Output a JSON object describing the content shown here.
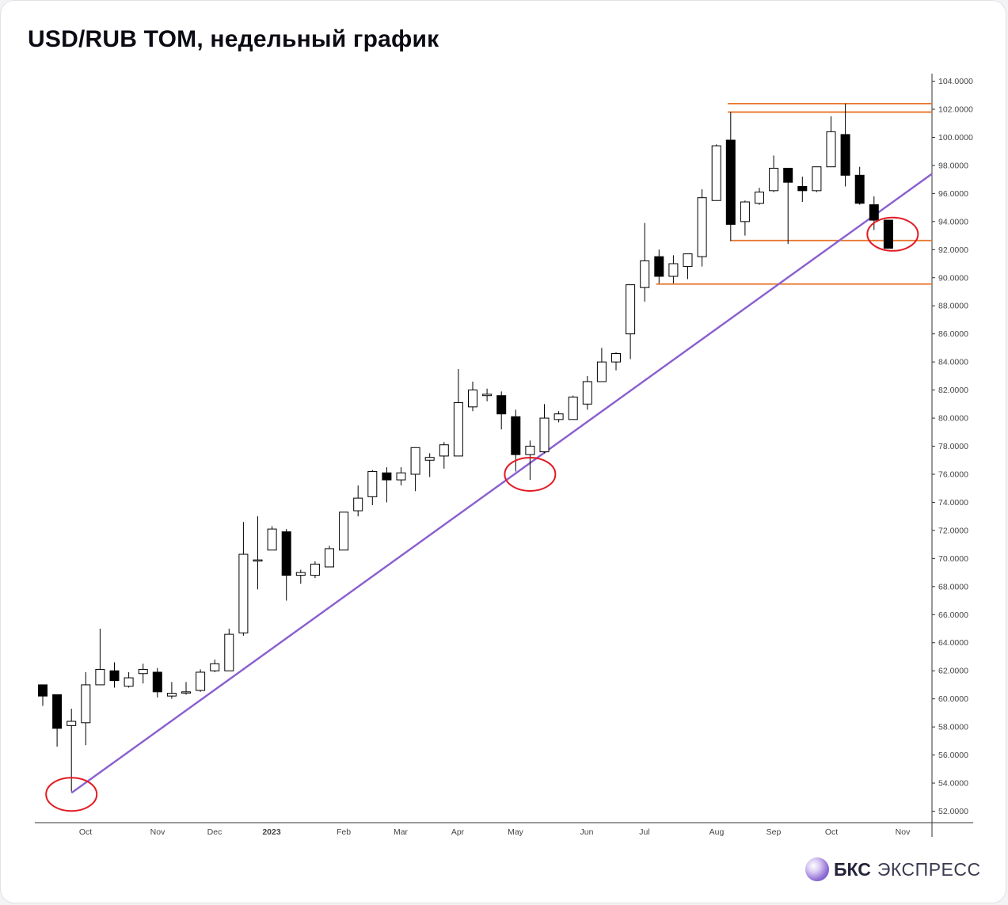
{
  "title": "USD/RUB TOM, недельный график",
  "logo": {
    "brand": "БКС",
    "name": "ЭКСПРЕСС",
    "icon": "bks-sphere-icon"
  },
  "colors": {
    "bull_fill": "#ffffff",
    "bear_fill": "#000000",
    "candle_stroke": "#000000",
    "trendline": "#8a5fd0",
    "levels": "#e8742a",
    "highlight": "#e21b23",
    "axis_text": "#444444"
  },
  "chart_data": {
    "type": "candlestick",
    "title": "USD/RUB TOM, недельный график",
    "ylim": [
      51.0,
      105.0
    ],
    "y_ticks": [
      "52.0000",
      "54.0000",
      "56.0000",
      "58.0000",
      "60.0000",
      "62.0000",
      "64.0000",
      "66.0000",
      "68.0000",
      "70.0000",
      "72.0000",
      "74.0000",
      "76.0000",
      "78.0000",
      "80.0000",
      "82.0000",
      "84.0000",
      "86.0000",
      "88.0000",
      "90.0000",
      "92.0000",
      "94.0000",
      "96.0000",
      "98.0000",
      "100.0000",
      "102.0000",
      "104.0000"
    ],
    "x_labels": [
      "Oct",
      "Nov",
      "Dec",
      "2023",
      "Feb",
      "Mar",
      "Apr",
      "May",
      "Jun",
      "Jul",
      "Aug",
      "Sep",
      "Oct",
      "Nov"
    ],
    "candles": [
      {
        "o": 61.0,
        "h": 61.0,
        "l": 59.5,
        "c": 60.2
      },
      {
        "o": 60.3,
        "h": 60.3,
        "l": 56.6,
        "c": 57.9
      },
      {
        "o": 58.1,
        "h": 59.3,
        "l": 53.4,
        "c": 58.4
      },
      {
        "o": 58.3,
        "h": 61.9,
        "l": 56.7,
        "c": 61.0
      },
      {
        "o": 61.0,
        "h": 65.0,
        "l": 61.0,
        "c": 62.1
      },
      {
        "o": 62.0,
        "h": 62.6,
        "l": 60.8,
        "c": 61.3
      },
      {
        "o": 60.9,
        "h": 61.9,
        "l": 60.8,
        "c": 61.5
      },
      {
        "o": 61.8,
        "h": 62.5,
        "l": 61.1,
        "c": 62.1
      },
      {
        "o": 61.9,
        "h": 62.2,
        "l": 60.1,
        "c": 60.5
      },
      {
        "o": 60.2,
        "h": 61.2,
        "l": 60.0,
        "c": 60.4
      },
      {
        "o": 60.5,
        "h": 61.2,
        "l": 60.3,
        "c": 60.5
      },
      {
        "o": 60.6,
        "h": 62.1,
        "l": 60.5,
        "c": 61.9
      },
      {
        "o": 62.0,
        "h": 62.8,
        "l": 61.9,
        "c": 62.5
      },
      {
        "o": 62.0,
        "h": 65.0,
        "l": 62.0,
        "c": 64.6
      },
      {
        "o": 64.7,
        "h": 72.6,
        "l": 64.5,
        "c": 70.3
      },
      {
        "o": 69.9,
        "h": 73.0,
        "l": 67.8,
        "c": 69.9
      },
      {
        "o": 70.6,
        "h": 72.3,
        "l": 70.6,
        "c": 72.1
      },
      {
        "o": 71.9,
        "h": 72.1,
        "l": 67.0,
        "c": 68.8
      },
      {
        "o": 68.8,
        "h": 69.2,
        "l": 68.2,
        "c": 69.0
      },
      {
        "o": 68.8,
        "h": 69.8,
        "l": 68.6,
        "c": 69.6
      },
      {
        "o": 69.4,
        "h": 70.9,
        "l": 69.4,
        "c": 70.7
      },
      {
        "o": 70.6,
        "h": 73.3,
        "l": 70.6,
        "c": 73.3
      },
      {
        "o": 73.4,
        "h": 75.2,
        "l": 73.0,
        "c": 74.3
      },
      {
        "o": 74.4,
        "h": 76.3,
        "l": 73.8,
        "c": 76.2
      },
      {
        "o": 76.1,
        "h": 76.5,
        "l": 74.0,
        "c": 75.6
      },
      {
        "o": 75.6,
        "h": 76.5,
        "l": 75.2,
        "c": 76.1
      },
      {
        "o": 76.0,
        "h": 77.9,
        "l": 74.8,
        "c": 77.9
      },
      {
        "o": 77.0,
        "h": 77.5,
        "l": 75.8,
        "c": 77.2
      },
      {
        "o": 77.3,
        "h": 78.3,
        "l": 76.4,
        "c": 78.1
      },
      {
        "o": 77.3,
        "h": 83.5,
        "l": 77.3,
        "c": 81.1
      },
      {
        "o": 80.8,
        "h": 82.6,
        "l": 80.5,
        "c": 82.0
      },
      {
        "o": 81.6,
        "h": 82.1,
        "l": 81.2,
        "c": 81.7
      },
      {
        "o": 81.6,
        "h": 81.9,
        "l": 79.2,
        "c": 80.3
      },
      {
        "o": 80.1,
        "h": 80.6,
        "l": 76.2,
        "c": 77.4
      },
      {
        "o": 77.4,
        "h": 78.4,
        "l": 75.6,
        "c": 78.0
      },
      {
        "o": 77.6,
        "h": 81.0,
        "l": 77.5,
        "c": 80.0
      },
      {
        "o": 79.9,
        "h": 80.5,
        "l": 79.7,
        "c": 80.3
      },
      {
        "o": 79.9,
        "h": 81.6,
        "l": 79.9,
        "c": 81.5
      },
      {
        "o": 81.0,
        "h": 83.0,
        "l": 80.6,
        "c": 82.6
      },
      {
        "o": 82.6,
        "h": 85.0,
        "l": 82.6,
        "c": 84.0
      },
      {
        "o": 84.0,
        "h": 84.7,
        "l": 83.4,
        "c": 84.6
      },
      {
        "o": 86.0,
        "h": 89.5,
        "l": 84.2,
        "c": 89.5
      },
      {
        "o": 89.3,
        "h": 93.9,
        "l": 88.3,
        "c": 91.2
      },
      {
        "o": 91.5,
        "h": 92.0,
        "l": 89.6,
        "c": 90.1
      },
      {
        "o": 90.1,
        "h": 91.6,
        "l": 89.6,
        "c": 91.0
      },
      {
        "o": 90.8,
        "h": 91.7,
        "l": 89.9,
        "c": 91.7
      },
      {
        "o": 91.5,
        "h": 96.3,
        "l": 90.8,
        "c": 95.7
      },
      {
        "o": 95.5,
        "h": 99.5,
        "l": 95.5,
        "c": 99.4
      },
      {
        "o": 99.8,
        "h": 101.8,
        "l": 92.6,
        "c": 93.8
      },
      {
        "o": 94.0,
        "h": 95.5,
        "l": 93.0,
        "c": 95.4
      },
      {
        "o": 95.3,
        "h": 96.4,
        "l": 95.2,
        "c": 96.1
      },
      {
        "o": 96.2,
        "h": 98.7,
        "l": 96.1,
        "c": 97.8
      },
      {
        "o": 97.8,
        "h": 97.8,
        "l": 92.4,
        "c": 96.8
      },
      {
        "o": 96.5,
        "h": 97.2,
        "l": 95.4,
        "c": 96.2
      },
      {
        "o": 96.2,
        "h": 97.9,
        "l": 96.1,
        "c": 97.9
      },
      {
        "o": 97.9,
        "h": 101.5,
        "l": 97.9,
        "c": 100.4
      },
      {
        "o": 100.2,
        "h": 102.4,
        "l": 96.5,
        "c": 97.3
      },
      {
        "o": 97.3,
        "h": 97.9,
        "l": 95.2,
        "c": 95.3
      },
      {
        "o": 95.2,
        "h": 95.8,
        "l": 93.4,
        "c": 94.1
      },
      {
        "o": 94.1,
        "h": 94.1,
        "l": 92.1,
        "c": 92.1
      }
    ],
    "levels": [
      {
        "value": 102.4,
        "from_candle": 47.8
      },
      {
        "value": 101.8,
        "from_candle": 47.8
      },
      {
        "value": 92.65,
        "from_candle": 48.0
      },
      {
        "value": 89.55,
        "from_candle": 42.8
      }
    ],
    "trendline": {
      "start": {
        "candle": 2.0,
        "value": 53.3
      },
      "end": {
        "candle": 60.0,
        "value": 95.9
      }
    },
    "highlights": [
      {
        "candle": 2.0,
        "value": 53.2
      },
      {
        "candle": 34.0,
        "value": 76.0
      },
      {
        "candle": 59.3,
        "value": 93.1
      }
    ]
  }
}
